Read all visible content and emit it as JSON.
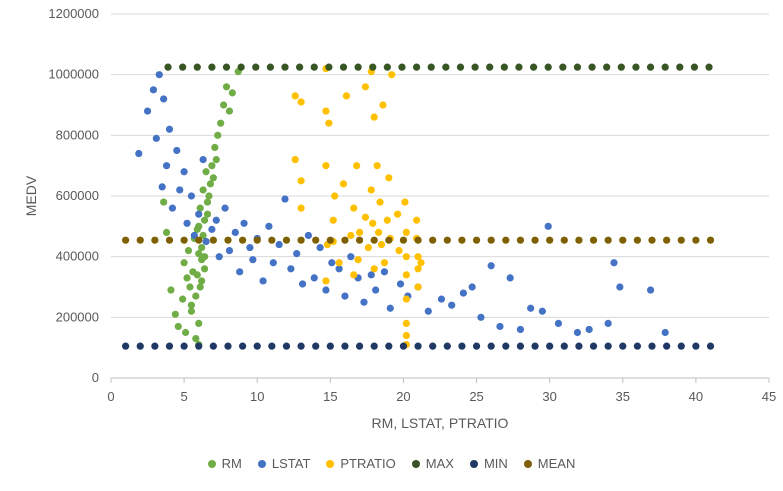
{
  "chart_data": {
    "type": "scatter",
    "title": "",
    "xlabel": "RM, LSTAT, PTRATIO",
    "ylabel": "MEDV",
    "xlim": [
      0,
      45
    ],
    "ylim": [
      0,
      1200000
    ],
    "x_ticks": [
      "0",
      "5",
      "10",
      "15",
      "20",
      "25",
      "30",
      "35",
      "40",
      "45"
    ],
    "y_ticks": [
      "0",
      "200000",
      "400000",
      "600000",
      "800000",
      "1000000",
      "1200000"
    ],
    "grid": "horizontal",
    "legend_position": "bottom",
    "series": [
      {
        "name": "RM",
        "color": "#70ad47",
        "x": [
          3.6,
          3.8,
          4.1,
          4.4,
          4.6,
          4.9,
          5.0,
          5.1,
          5.2,
          5.3,
          5.4,
          5.5,
          5.6,
          5.7,
          5.8,
          5.9,
          6.0,
          6.0,
          6.1,
          6.1,
          6.2,
          6.2,
          6.3,
          6.3,
          6.4,
          6.4,
          6.5,
          6.5,
          6.6,
          6.7,
          6.8,
          6.9,
          7.0,
          7.1,
          7.2,
          7.3,
          7.5,
          7.7,
          7.9,
          8.1,
          8.3,
          8.7,
          5.5,
          5.8,
          6.0,
          6.2,
          6.4,
          6.6,
          6.0,
          5.9
        ],
        "y": [
          580000,
          480000,
          290000,
          210000,
          170000,
          260000,
          380000,
          150000,
          330000,
          420000,
          300000,
          220000,
          350000,
          460000,
          270000,
          340000,
          410000,
          500000,
          300000,
          560000,
          390000,
          430000,
          470000,
          620000,
          360000,
          520000,
          450000,
          680000,
          540000,
          600000,
          640000,
          700000,
          660000,
          760000,
          720000,
          800000,
          840000,
          900000,
          960000,
          880000,
          940000,
          1010000,
          240000,
          130000,
          180000,
          320000,
          400000,
          580000,
          110000,
          490000
        ]
      },
      {
        "name": "LSTAT",
        "color": "#4472c4",
        "x": [
          1.9,
          2.5,
          2.9,
          3.1,
          3.3,
          3.5,
          3.6,
          3.8,
          4.0,
          4.2,
          4.5,
          4.7,
          5.0,
          5.2,
          5.5,
          5.7,
          6.0,
          6.3,
          6.5,
          6.9,
          7.2,
          7.4,
          7.8,
          8.1,
          8.5,
          8.8,
          9.1,
          9.5,
          9.7,
          10.0,
          10.4,
          10.8,
          11.1,
          11.5,
          11.9,
          12.3,
          12.7,
          13.1,
          13.5,
          13.9,
          14.3,
          14.7,
          15.1,
          15.6,
          16.0,
          16.4,
          16.9,
          17.3,
          17.8,
          18.1,
          18.7,
          19.1,
          19.8,
          20.3,
          21.0,
          21.7,
          22.6,
          23.3,
          24.1,
          24.7,
          25.3,
          26.0,
          26.6,
          27.3,
          28.0,
          28.7,
          29.5,
          29.9,
          30.6,
          31.9,
          32.7,
          34.0,
          34.4,
          34.8,
          36.9,
          37.9
        ],
        "y": [
          740000,
          880000,
          950000,
          790000,
          1000000,
          630000,
          920000,
          700000,
          820000,
          560000,
          750000,
          620000,
          680000,
          510000,
          600000,
          470000,
          540000,
          720000,
          450000,
          490000,
          520000,
          400000,
          560000,
          420000,
          480000,
          350000,
          510000,
          430000,
          390000,
          460000,
          320000,
          500000,
          380000,
          440000,
          590000,
          360000,
          410000,
          310000,
          470000,
          330000,
          430000,
          290000,
          380000,
          360000,
          270000,
          400000,
          330000,
          250000,
          340000,
          290000,
          350000,
          230000,
          310000,
          270000,
          300000,
          220000,
          260000,
          240000,
          280000,
          300000,
          200000,
          370000,
          170000,
          330000,
          160000,
          230000,
          220000,
          500000,
          180000,
          150000,
          160000,
          180000,
          380000,
          300000,
          290000,
          150000
        ]
      },
      {
        "name": "PTRATIO",
        "color": "#ffc000",
        "x": [
          12.6,
          12.6,
          13.0,
          13.0,
          13.0,
          14.7,
          14.7,
          14.7,
          14.7,
          14.9,
          15.2,
          15.2,
          15.6,
          15.9,
          16.1,
          16.4,
          16.6,
          16.6,
          16.8,
          17.0,
          17.4,
          17.6,
          17.8,
          17.8,
          17.9,
          18.0,
          18.2,
          18.3,
          18.4,
          18.5,
          18.6,
          18.7,
          18.9,
          19.0,
          19.1,
          19.2,
          19.6,
          19.7,
          20.1,
          20.2,
          20.2,
          20.2,
          20.2,
          20.2,
          20.2,
          20.9,
          20.9,
          21.0,
          21.0,
          21.0,
          21.2,
          20.2,
          14.8,
          15.3,
          16.9,
          17.4,
          18.0
        ],
        "y": [
          930000,
          720000,
          910000,
          650000,
          560000,
          1020000,
          880000,
          700000,
          320000,
          840000,
          520000,
          450000,
          380000,
          640000,
          930000,
          470000,
          560000,
          340000,
          700000,
          480000,
          960000,
          430000,
          1010000,
          620000,
          510000,
          860000,
          700000,
          480000,
          580000,
          440000,
          900000,
          380000,
          520000,
          660000,
          460000,
          1000000,
          540000,
          420000,
          580000,
          480000,
          400000,
          340000,
          260000,
          180000,
          110000,
          520000,
          460000,
          400000,
          360000,
          300000,
          380000,
          140000,
          440000,
          600000,
          390000,
          530000,
          360000
        ]
      },
      {
        "name": "MAX",
        "color": "#375623",
        "x": [
          3.9,
          4.9,
          5.9,
          6.9,
          7.9,
          8.9,
          9.9,
          10.9,
          11.9,
          12.9,
          13.9,
          14.9,
          15.9,
          16.9,
          17.9,
          18.9,
          19.9,
          20.9,
          21.9,
          22.9,
          23.9,
          24.9,
          25.9,
          26.9,
          27.9,
          28.9,
          29.9,
          30.9,
          31.9,
          32.9,
          33.9,
          34.9,
          35.9,
          36.9,
          37.9,
          38.9,
          39.9,
          40.9
        ],
        "y": [
          1024800,
          1024800,
          1024800,
          1024800,
          1024800,
          1024800,
          1024800,
          1024800,
          1024800,
          1024800,
          1024800,
          1024800,
          1024800,
          1024800,
          1024800,
          1024800,
          1024800,
          1024800,
          1024800,
          1024800,
          1024800,
          1024800,
          1024800,
          1024800,
          1024800,
          1024800,
          1024800,
          1024800,
          1024800,
          1024800,
          1024800,
          1024800,
          1024800,
          1024800,
          1024800,
          1024800,
          1024800,
          1024800
        ]
      },
      {
        "name": "MIN",
        "color": "#203864",
        "x": [
          1.0,
          2.0,
          3.0,
          4.0,
          5.0,
          6.0,
          7.0,
          8.0,
          9.0,
          10.0,
          11.0,
          12.0,
          13.0,
          14.0,
          15.0,
          16.0,
          17.0,
          18.0,
          19.0,
          20.0,
          21.0,
          22.0,
          23.0,
          24.0,
          25.0,
          26.0,
          27.0,
          28.0,
          29.0,
          30.0,
          31.0,
          32.0,
          33.0,
          34.0,
          35.0,
          36.0,
          37.0,
          38.0,
          39.0,
          40.0,
          41.0
        ],
        "y": [
          105000,
          105000,
          105000,
          105000,
          105000,
          105000,
          105000,
          105000,
          105000,
          105000,
          105000,
          105000,
          105000,
          105000,
          105000,
          105000,
          105000,
          105000,
          105000,
          105000,
          105000,
          105000,
          105000,
          105000,
          105000,
          105000,
          105000,
          105000,
          105000,
          105000,
          105000,
          105000,
          105000,
          105000,
          105000,
          105000,
          105000,
          105000,
          105000,
          105000,
          105000
        ]
      },
      {
        "name": "MEAN",
        "color": "#7f6000",
        "x": [
          1.0,
          2.0,
          3.0,
          4.0,
          5.0,
          6.0,
          7.0,
          8.0,
          9.0,
          10.0,
          11.0,
          12.0,
          13.0,
          14.0,
          15.0,
          16.0,
          17.0,
          18.0,
          19.0,
          20.0,
          21.0,
          22.0,
          23.0,
          24.0,
          25.0,
          26.0,
          27.0,
          28.0,
          29.0,
          30.0,
          31.0,
          32.0,
          33.0,
          34.0,
          35.0,
          36.0,
          37.0,
          38.0,
          39.0,
          40.0,
          41.0
        ],
        "y": [
          454300,
          454300,
          454300,
          454300,
          454300,
          454300,
          454300,
          454300,
          454300,
          454300,
          454300,
          454300,
          454300,
          454300,
          454300,
          454300,
          454300,
          454300,
          454300,
          454300,
          454300,
          454300,
          454300,
          454300,
          454300,
          454300,
          454300,
          454300,
          454300,
          454300,
          454300,
          454300,
          454300,
          454300,
          454300,
          454300,
          454300,
          454300,
          454300,
          454300,
          454300
        ]
      }
    ]
  }
}
